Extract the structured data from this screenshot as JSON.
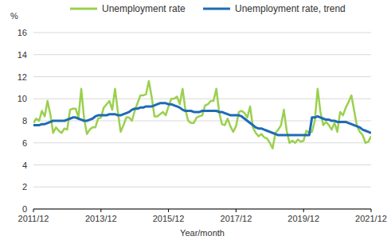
{
  "chart_data": {
    "type": "line",
    "x_label": "Year/month",
    "y_label": "%",
    "categories": [
      "2011/12",
      null,
      null,
      null,
      null,
      null,
      null,
      null,
      null,
      null,
      null,
      null,
      null,
      null,
      null,
      null,
      null,
      null,
      null,
      null,
      null,
      null,
      null,
      null,
      "2013/12",
      null,
      null,
      null,
      null,
      null,
      null,
      null,
      null,
      null,
      null,
      null,
      null,
      null,
      null,
      null,
      null,
      null,
      null,
      null,
      null,
      null,
      null,
      null,
      "2015/12",
      null,
      null,
      null,
      null,
      null,
      null,
      null,
      null,
      null,
      null,
      null,
      null,
      null,
      null,
      null,
      null,
      null,
      null,
      null,
      null,
      null,
      null,
      null,
      "2017/12",
      null,
      null,
      null,
      null,
      null,
      null,
      null,
      null,
      null,
      null,
      null,
      null,
      null,
      null,
      null,
      null,
      null,
      null,
      null,
      null,
      null,
      null,
      null,
      "2019/12",
      null,
      null,
      null,
      null,
      null,
      null,
      null,
      null,
      null,
      null,
      null,
      null,
      null,
      null,
      null,
      null,
      null,
      null,
      null,
      null,
      null,
      null,
      null,
      "2021/12"
    ],
    "series": [
      {
        "name": "Unemployment rate",
        "color": "#9bd04e",
        "values": [
          7.8,
          8.2,
          8.0,
          8.9,
          8.4,
          9.8,
          8.6,
          6.9,
          7.4,
          7.1,
          6.9,
          7.3,
          7.2,
          9.0,
          9.1,
          9.1,
          8.3,
          10.9,
          8.2,
          6.8,
          7.2,
          7.4,
          7.4,
          8.2,
          8.3,
          9.2,
          9.5,
          9.8,
          9.0,
          10.9,
          8.8,
          7.0,
          7.6,
          8.3,
          8.3,
          8.0,
          8.9,
          9.6,
          10.3,
          10.3,
          10.4,
          11.6,
          10.2,
          8.4,
          8.4,
          8.6,
          8.8,
          8.5,
          9.3,
          10.0,
          10.0,
          10.2,
          9.5,
          10.9,
          9.0,
          8.0,
          7.8,
          7.8,
          8.3,
          8.4,
          8.5,
          9.4,
          9.5,
          9.8,
          9.8,
          10.9,
          8.8,
          7.7,
          7.6,
          8.2,
          7.5,
          7.0,
          7.5,
          8.8,
          8.9,
          8.7,
          8.3,
          9.3,
          7.4,
          6.9,
          6.6,
          6.8,
          6.5,
          6.4,
          6.0,
          5.5,
          6.9,
          7.2,
          7.6,
          9.0,
          7.1,
          6.0,
          6.2,
          6.0,
          6.3,
          6.1,
          6.2,
          7.1,
          6.9,
          7.0,
          8.0,
          10.9,
          8.8,
          7.6,
          7.9,
          7.6,
          7.2,
          7.8,
          7.0,
          8.8,
          8.5,
          9.2,
          9.7,
          10.3,
          8.9,
          7.5,
          7.0,
          6.7,
          6.0,
          6.1,
          6.6
        ]
      },
      {
        "name": "Unemployment rate, trend",
        "color": "#1f6bb5",
        "values": [
          7.6,
          7.6,
          7.6,
          7.7,
          7.7,
          7.8,
          7.9,
          8.0,
          8.0,
          8.0,
          8.0,
          8.0,
          8.1,
          8.2,
          8.3,
          8.3,
          8.2,
          8.1,
          8.0,
          8.0,
          8.1,
          8.2,
          8.4,
          8.5,
          8.5,
          8.5,
          8.5,
          8.6,
          8.6,
          8.6,
          8.5,
          8.5,
          8.6,
          8.7,
          8.8,
          9.0,
          9.1,
          9.1,
          9.2,
          9.2,
          9.3,
          9.3,
          9.3,
          9.4,
          9.5,
          9.6,
          9.6,
          9.6,
          9.5,
          9.5,
          9.4,
          9.3,
          9.2,
          9.0,
          8.9,
          8.9,
          8.9,
          8.8,
          8.8,
          8.8,
          8.9,
          8.9,
          8.9,
          8.9,
          8.9,
          8.9,
          8.8,
          8.8,
          8.7,
          8.6,
          8.5,
          8.5,
          8.5,
          8.5,
          8.4,
          8.2,
          8.0,
          7.8,
          7.6,
          7.4,
          7.3,
          7.3,
          7.2,
          7.1,
          7.0,
          6.9,
          6.8,
          6.7,
          6.7,
          6.7,
          6.7,
          6.7,
          6.7,
          6.7,
          6.7,
          6.7,
          6.7,
          6.7,
          6.7,
          8.3,
          8.3,
          8.4,
          8.3,
          8.2,
          8.1,
          8.1,
          8.0,
          8.0,
          7.9,
          7.9,
          7.9,
          7.9,
          7.8,
          7.7,
          7.6,
          7.5,
          7.4,
          7.2,
          7.1,
          7.0,
          6.9
        ]
      }
    ],
    "ylim": [
      0,
      16
    ],
    "yticks": [
      0,
      2,
      4,
      6,
      8,
      10,
      12,
      14,
      16
    ],
    "grid": true,
    "legend": "top"
  }
}
